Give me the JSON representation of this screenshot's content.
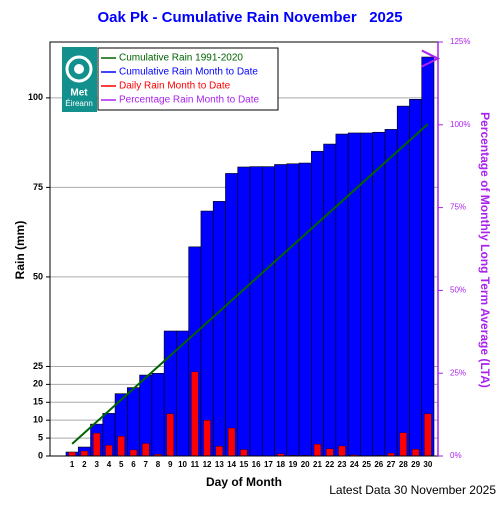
{
  "chart_data": {
    "type": "bar",
    "title": "Oak Pk - Cumulative Rain November   2025",
    "x_label": "Day of Month",
    "y_label": "Rain (mm)",
    "y2_label": "Percentage of Monthly Long Term Average (LTA)",
    "footer": "Latest Data 30 November 2025",
    "logo": {
      "line1": "Met",
      "line2": "Éireann"
    },
    "categories": [
      "1",
      "2",
      "3",
      "4",
      "5",
      "6",
      "7",
      "8",
      "9",
      "10",
      "11",
      "12",
      "13",
      "14",
      "15",
      "16",
      "17",
      "18",
      "19",
      "20",
      "21",
      "22",
      "23",
      "24",
      "25",
      "26",
      "27",
      "28",
      "29",
      "30"
    ],
    "series": [
      {
        "name": "Cumulative Rain 1991-2020",
        "color": "#006400",
        "type": "line",
        "x": [
          1,
          30
        ],
        "values": [
          3.4,
          92.7
        ]
      },
      {
        "name": "Cumulative Rain Month to Date",
        "color": "#0000ff",
        "type": "bar",
        "values": [
          1.1,
          2.5,
          8.9,
          11.9,
          17.4,
          19.1,
          22.6,
          23.1,
          34.9,
          34.9,
          58.4,
          68.4,
          71.1,
          78.9,
          80.7,
          80.8,
          80.8,
          81.4,
          81.6,
          81.8,
          85.1,
          87.1,
          89.9,
          90.2,
          90.2,
          90.4,
          91.2,
          97.7,
          99.6,
          111.4
        ]
      },
      {
        "name": "Daily Rain Month to Date",
        "color": "#ff0000",
        "type": "narrowbar",
        "values": [
          1.1,
          1.4,
          6.4,
          3.0,
          5.5,
          1.7,
          3.5,
          0.5,
          11.8,
          0,
          23.5,
          10,
          2.7,
          7.8,
          1.8,
          0.1,
          0,
          0.6,
          0.2,
          0.2,
          3.3,
          2,
          2.8,
          0.3,
          0,
          0.2,
          0.8,
          6.5,
          1.9,
          11.8
        ]
      },
      {
        "name": "Percentage Rain Month to Date",
        "color": "#aa22ee",
        "type": "arrow",
        "axis": "y2",
        "x": [
          30
        ],
        "values": [
          120
        ]
      }
    ],
    "ylim": [
      0,
      115.6
    ],
    "yticks": [
      0,
      5,
      10,
      15,
      20,
      25,
      50,
      75,
      100
    ],
    "y2lim": [
      0,
      125
    ],
    "y2ticks": [
      {
        "value": 0,
        "label": "0%"
      },
      {
        "value": 25,
        "label": "25%"
      },
      {
        "value": 50,
        "label": "50%"
      },
      {
        "value": 75,
        "label": "75%"
      },
      {
        "value": 100,
        "label": "100%"
      },
      {
        "value": 125,
        "label": "125%"
      }
    ],
    "grid": true
  }
}
